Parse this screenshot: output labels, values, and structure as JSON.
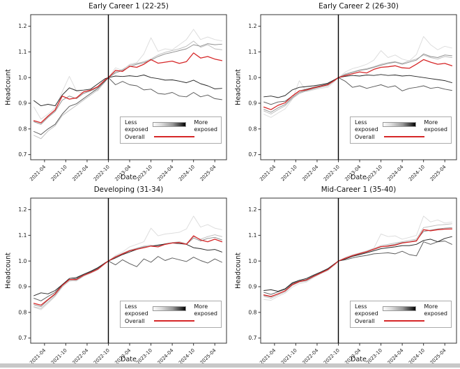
{
  "figure": {
    "background": "#ffffff",
    "bottom_strip_color": "#c8c8c8"
  },
  "colors": {
    "quintile_least_exposed": "#dcdcdc",
    "quintile_2": "#bdbdbd",
    "quintile_3": "#8f8f8f",
    "quintile_4": "#595959",
    "quintile_most_exposed": "#262626",
    "overall": "#d62728",
    "event_line": "#000000",
    "spine": "#333333"
  },
  "legend": {
    "less_line1": "Less",
    "less_line2": "exposed",
    "more_line1": "More",
    "more_line2": "exposed",
    "overall_label": "Overall"
  },
  "axes": {
    "ylabel": "Headcount",
    "xlabel": "Date",
    "yticks": [
      "0.7",
      "0.8",
      "0.9",
      "1.0",
      "1.1",
      "1.2"
    ],
    "ylim": [
      0.68,
      1.245
    ],
    "xticks": [
      "2021-04",
      "2021-10",
      "2022-04",
      "2022-10",
      "2023-04",
      "2023-10",
      "2024-04",
      "2024-10",
      "2025-04"
    ],
    "event_x": "2022-10",
    "grid": false,
    "legend_position": "lower right"
  },
  "chart_data": [
    {
      "type": "line",
      "title": "Early Career 1 (22-25)",
      "x": [
        "2021-01",
        "2021-03",
        "2021-05",
        "2021-07",
        "2021-09",
        "2021-11",
        "2022-01",
        "2022-03",
        "2022-05",
        "2022-07",
        "2022-09",
        "2022-10",
        "2022-12",
        "2023-02",
        "2023-04",
        "2023-06",
        "2023-08",
        "2023-10",
        "2023-12",
        "2024-02",
        "2024-04",
        "2024-06",
        "2024-08",
        "2024-10",
        "2024-12",
        "2025-02",
        "2025-04",
        "2025-06"
      ],
      "series": [
        {
          "name": "exposure-q1-least",
          "color": "#dcdcdc",
          "values": [
            0.885,
            0.838,
            0.858,
            0.882,
            0.945,
            1.005,
            0.948,
            0.938,
            0.952,
            0.948,
            0.985,
            1.0,
            1.038,
            1.028,
            1.052,
            1.058,
            1.092,
            1.155,
            1.102,
            1.112,
            1.108,
            1.128,
            1.148,
            1.188,
            1.148,
            1.158,
            1.148,
            1.143
          ]
        },
        {
          "name": "exposure-q2",
          "color": "#bdbdbd",
          "values": [
            0.775,
            0.762,
            0.792,
            0.812,
            0.852,
            0.872,
            0.892,
            0.912,
            0.932,
            0.952,
            0.982,
            1.0,
            1.022,
            1.032,
            1.048,
            1.055,
            1.062,
            1.072,
            1.088,
            1.098,
            1.105,
            1.112,
            1.122,
            1.142,
            1.118,
            1.128,
            1.112,
            1.108
          ]
        },
        {
          "name": "exposure-q3",
          "color": "#8f8f8f",
          "values": [
            0.828,
            0.818,
            0.845,
            0.868,
            0.912,
            0.928,
            0.918,
            0.938,
            0.948,
            0.962,
            0.988,
            1.0,
            1.018,
            1.028,
            1.042,
            1.052,
            1.058,
            1.068,
            1.082,
            1.092,
            1.098,
            1.105,
            1.112,
            1.128,
            1.122,
            1.132,
            1.128,
            1.13
          ]
        },
        {
          "name": "exposure-q4",
          "color": "#595959",
          "values": [
            0.79,
            0.778,
            0.8,
            0.818,
            0.858,
            0.888,
            0.898,
            0.918,
            0.938,
            0.958,
            0.985,
            1.0,
            0.972,
            0.985,
            0.972,
            0.968,
            0.952,
            0.955,
            0.938,
            0.935,
            0.942,
            0.928,
            0.925,
            0.942,
            0.925,
            0.932,
            0.918,
            0.914
          ]
        },
        {
          "name": "exposure-q5-most",
          "color": "#262626",
          "values": [
            0.91,
            0.89,
            0.896,
            0.89,
            0.932,
            0.96,
            0.949,
            0.951,
            0.955,
            0.975,
            0.995,
            1.0,
            1.006,
            1.004,
            1.007,
            1.004,
            1.01,
            1.0,
            0.996,
            0.99,
            0.991,
            0.986,
            0.98,
            0.99,
            0.976,
            0.968,
            0.956,
            0.958
          ]
        },
        {
          "name": "overall",
          "color": "#d62728",
          "values": [
            0.832,
            0.824,
            0.85,
            0.874,
            0.928,
            0.916,
            0.921,
            0.944,
            0.951,
            0.964,
            0.99,
            1.0,
            1.028,
            1.024,
            1.044,
            1.04,
            1.052,
            1.07,
            1.056,
            1.06,
            1.064,
            1.055,
            1.062,
            1.096,
            1.076,
            1.082,
            1.072,
            1.066
          ]
        }
      ]
    },
    {
      "type": "line",
      "title": "Early Career 2 (26-30)",
      "x": [
        "2021-01",
        "2021-03",
        "2021-05",
        "2021-07",
        "2021-09",
        "2021-11",
        "2022-01",
        "2022-03",
        "2022-05",
        "2022-07",
        "2022-09",
        "2022-10",
        "2022-12",
        "2023-02",
        "2023-04",
        "2023-06",
        "2023-08",
        "2023-10",
        "2023-12",
        "2024-02",
        "2024-04",
        "2024-06",
        "2024-08",
        "2024-10",
        "2024-12",
        "2025-02",
        "2025-04",
        "2025-06"
      ],
      "series": [
        {
          "name": "exposure-q1-least",
          "color": "#dcdcdc",
          "values": [
            0.857,
            0.845,
            0.862,
            0.878,
            0.915,
            0.988,
            0.945,
            0.952,
            0.958,
            0.962,
            0.985,
            1.0,
            1.022,
            1.035,
            1.042,
            1.052,
            1.068,
            1.105,
            1.078,
            1.088,
            1.072,
            1.065,
            1.09,
            1.16,
            1.128,
            1.108,
            1.122,
            1.115
          ]
        },
        {
          "name": "exposure-q2",
          "color": "#bdbdbd",
          "values": [
            0.87,
            0.858,
            0.875,
            0.89,
            0.918,
            0.938,
            0.948,
            0.955,
            0.962,
            0.968,
            0.988,
            1.0,
            1.015,
            1.022,
            1.03,
            1.035,
            1.042,
            1.052,
            1.058,
            1.062,
            1.055,
            1.065,
            1.072,
            1.088,
            1.078,
            1.072,
            1.082,
            1.078
          ]
        },
        {
          "name": "exposure-q3",
          "color": "#8f8f8f",
          "values": [
            0.876,
            0.865,
            0.882,
            0.895,
            0.922,
            0.942,
            0.95,
            0.958,
            0.965,
            0.972,
            0.99,
            1.0,
            1.012,
            1.02,
            1.028,
            1.032,
            1.04,
            1.048,
            1.055,
            1.06,
            1.052,
            1.06,
            1.068,
            1.092,
            1.082,
            1.078,
            1.088,
            1.085
          ]
        },
        {
          "name": "exposure-q4",
          "color": "#595959",
          "values": [
            0.905,
            0.895,
            0.905,
            0.908,
            0.928,
            0.948,
            0.955,
            0.962,
            0.968,
            0.975,
            0.99,
            1.0,
            0.985,
            0.962,
            0.968,
            0.958,
            0.965,
            0.972,
            0.962,
            0.968,
            0.948,
            0.958,
            0.962,
            0.968,
            0.958,
            0.962,
            0.955,
            0.95
          ]
        },
        {
          "name": "exposure-q5-most",
          "color": "#262626",
          "values": [
            0.925,
            0.928,
            0.922,
            0.93,
            0.952,
            0.962,
            0.965,
            0.968,
            0.972,
            0.978,
            0.992,
            1.0,
            1.005,
            1.008,
            1.006,
            1.01,
            1.008,
            1.012,
            1.008,
            1.01,
            1.006,
            1.008,
            1.004,
            1.0,
            0.996,
            0.992,
            0.988,
            0.98
          ]
        },
        {
          "name": "overall",
          "color": "#d62728",
          "values": [
            0.885,
            0.875,
            0.892,
            0.902,
            0.928,
            0.948,
            0.952,
            0.96,
            0.966,
            0.972,
            0.99,
            1.0,
            1.008,
            1.015,
            1.022,
            1.018,
            1.032,
            1.04,
            1.042,
            1.046,
            1.038,
            1.036,
            1.052,
            1.07,
            1.06,
            1.052,
            1.055,
            1.046
          ]
        }
      ]
    },
    {
      "type": "line",
      "title": "Developing (31-34)",
      "x": [
        "2021-01",
        "2021-03",
        "2021-05",
        "2021-07",
        "2021-09",
        "2021-11",
        "2022-01",
        "2022-03",
        "2022-05",
        "2022-07",
        "2022-09",
        "2022-10",
        "2022-12",
        "2023-02",
        "2023-04",
        "2023-06",
        "2023-08",
        "2023-10",
        "2023-12",
        "2024-02",
        "2024-04",
        "2024-06",
        "2024-08",
        "2024-10",
        "2024-12",
        "2025-02",
        "2025-04",
        "2025-06"
      ],
      "series": [
        {
          "name": "exposure-q1-least",
          "color": "#dcdcdc",
          "values": [
            0.82,
            0.81,
            0.835,
            0.862,
            0.898,
            0.925,
            0.922,
            0.94,
            0.952,
            0.965,
            0.988,
            1.0,
            1.022,
            1.035,
            1.055,
            1.065,
            1.075,
            1.128,
            1.098,
            1.105,
            1.108,
            1.112,
            1.125,
            1.175,
            1.132,
            1.142,
            1.128,
            1.122
          ]
        },
        {
          "name": "exposure-q2",
          "color": "#bdbdbd",
          "values": [
            0.822,
            0.815,
            0.84,
            0.865,
            0.9,
            0.922,
            0.925,
            0.942,
            0.955,
            0.968,
            0.99,
            1.0,
            1.018,
            1.03,
            1.042,
            1.05,
            1.058,
            1.062,
            1.055,
            1.068,
            1.072,
            1.075,
            1.068,
            1.095,
            1.085,
            1.095,
            1.102,
            1.095
          ]
        },
        {
          "name": "exposure-q3",
          "color": "#8f8f8f",
          "values": [
            0.83,
            0.822,
            0.848,
            0.87,
            0.905,
            0.928,
            0.928,
            0.945,
            0.956,
            0.97,
            0.99,
            1.0,
            1.016,
            1.028,
            1.04,
            1.048,
            1.055,
            1.058,
            1.06,
            1.065,
            1.07,
            1.072,
            1.065,
            1.09,
            1.078,
            1.088,
            1.092,
            1.082
          ]
        },
        {
          "name": "exposure-q4",
          "color": "#595959",
          "values": [
            0.855,
            0.845,
            0.862,
            0.878,
            0.908,
            0.928,
            0.932,
            0.948,
            0.958,
            0.972,
            0.992,
            1.0,
            0.985,
            1.005,
            0.99,
            0.978,
            1.008,
            0.995,
            1.018,
            1.002,
            1.012,
            1.005,
            0.998,
            1.015,
            1.002,
            0.992,
            1.008,
            0.995
          ]
        },
        {
          "name": "exposure-q5-most",
          "color": "#262626",
          "values": [
            0.865,
            0.876,
            0.872,
            0.885,
            0.908,
            0.932,
            0.936,
            0.948,
            0.96,
            0.974,
            0.992,
            1.0,
            1.012,
            1.025,
            1.035,
            1.045,
            1.052,
            1.058,
            1.062,
            1.066,
            1.07,
            1.068,
            1.065,
            1.052,
            1.048,
            1.042,
            1.045,
            1.035
          ]
        },
        {
          "name": "overall",
          "color": "#d62728",
          "values": [
            0.835,
            0.828,
            0.85,
            0.872,
            0.905,
            0.928,
            0.928,
            0.944,
            0.955,
            0.968,
            0.99,
            1.0,
            1.016,
            1.028,
            1.04,
            1.046,
            1.052,
            1.058,
            1.055,
            1.065,
            1.07,
            1.072,
            1.065,
            1.098,
            1.082,
            1.075,
            1.085,
            1.075
          ]
        }
      ]
    },
    {
      "type": "line",
      "title": "Mid-Career 1 (35-40)",
      "x": [
        "2021-01",
        "2021-03",
        "2021-05",
        "2021-07",
        "2021-09",
        "2021-11",
        "2022-01",
        "2022-03",
        "2022-05",
        "2022-07",
        "2022-09",
        "2022-10",
        "2022-12",
        "2023-02",
        "2023-04",
        "2023-06",
        "2023-08",
        "2023-10",
        "2023-12",
        "2024-02",
        "2024-04",
        "2024-06",
        "2024-08",
        "2024-10",
        "2024-12",
        "2025-02",
        "2025-04",
        "2025-06"
      ],
      "series": [
        {
          "name": "exposure-q1-least",
          "color": "#dcdcdc",
          "values": [
            0.85,
            0.847,
            0.862,
            0.875,
            0.898,
            0.912,
            0.918,
            0.935,
            0.95,
            0.962,
            0.985,
            1.0,
            1.015,
            1.025,
            1.032,
            1.04,
            1.05,
            1.105,
            1.095,
            1.098,
            1.085,
            1.092,
            1.1,
            1.175,
            1.152,
            1.16,
            1.148,
            1.152
          ]
        },
        {
          "name": "exposure-q2",
          "color": "#bdbdbd",
          "values": [
            0.862,
            0.855,
            0.868,
            0.88,
            0.905,
            0.918,
            0.922,
            0.938,
            0.952,
            0.965,
            0.988,
            1.0,
            1.012,
            1.022,
            1.03,
            1.038,
            1.048,
            1.06,
            1.065,
            1.07,
            1.075,
            1.08,
            1.085,
            1.13,
            1.135,
            1.14,
            1.142,
            1.145
          ]
        },
        {
          "name": "exposure-q3",
          "color": "#8f8f8f",
          "values": [
            0.866,
            0.86,
            0.872,
            0.884,
            0.908,
            0.92,
            0.925,
            0.94,
            0.954,
            0.966,
            0.988,
            1.0,
            1.01,
            1.02,
            1.028,
            1.035,
            1.045,
            1.055,
            1.06,
            1.065,
            1.072,
            1.075,
            1.08,
            1.115,
            1.12,
            1.125,
            1.128,
            1.13
          ]
        },
        {
          "name": "exposure-q4",
          "color": "#595959",
          "values": [
            0.878,
            0.87,
            0.88,
            0.89,
            0.912,
            0.922,
            0.928,
            0.942,
            0.955,
            0.968,
            0.99,
            1.0,
            1.005,
            1.012,
            1.018,
            1.022,
            1.028,
            1.03,
            1.032,
            1.028,
            1.038,
            1.025,
            1.02,
            1.075,
            1.065,
            1.075,
            1.078,
            1.065
          ]
        },
        {
          "name": "exposure-q5-most",
          "color": "#262626",
          "values": [
            0.885,
            0.888,
            0.882,
            0.892,
            0.915,
            0.925,
            0.932,
            0.945,
            0.957,
            0.97,
            0.99,
            1.0,
            1.008,
            1.018,
            1.025,
            1.032,
            1.04,
            1.048,
            1.052,
            1.055,
            1.06,
            1.06,
            1.065,
            1.08,
            1.085,
            1.075,
            1.088,
            1.095
          ]
        },
        {
          "name": "overall",
          "color": "#d62728",
          "values": [
            0.868,
            0.862,
            0.872,
            0.884,
            0.908,
            0.92,
            0.926,
            0.94,
            0.953,
            0.966,
            0.988,
            1.0,
            1.011,
            1.021,
            1.029,
            1.036,
            1.046,
            1.056,
            1.058,
            1.062,
            1.07,
            1.074,
            1.078,
            1.122,
            1.118,
            1.122,
            1.124,
            1.125
          ]
        }
      ]
    }
  ]
}
